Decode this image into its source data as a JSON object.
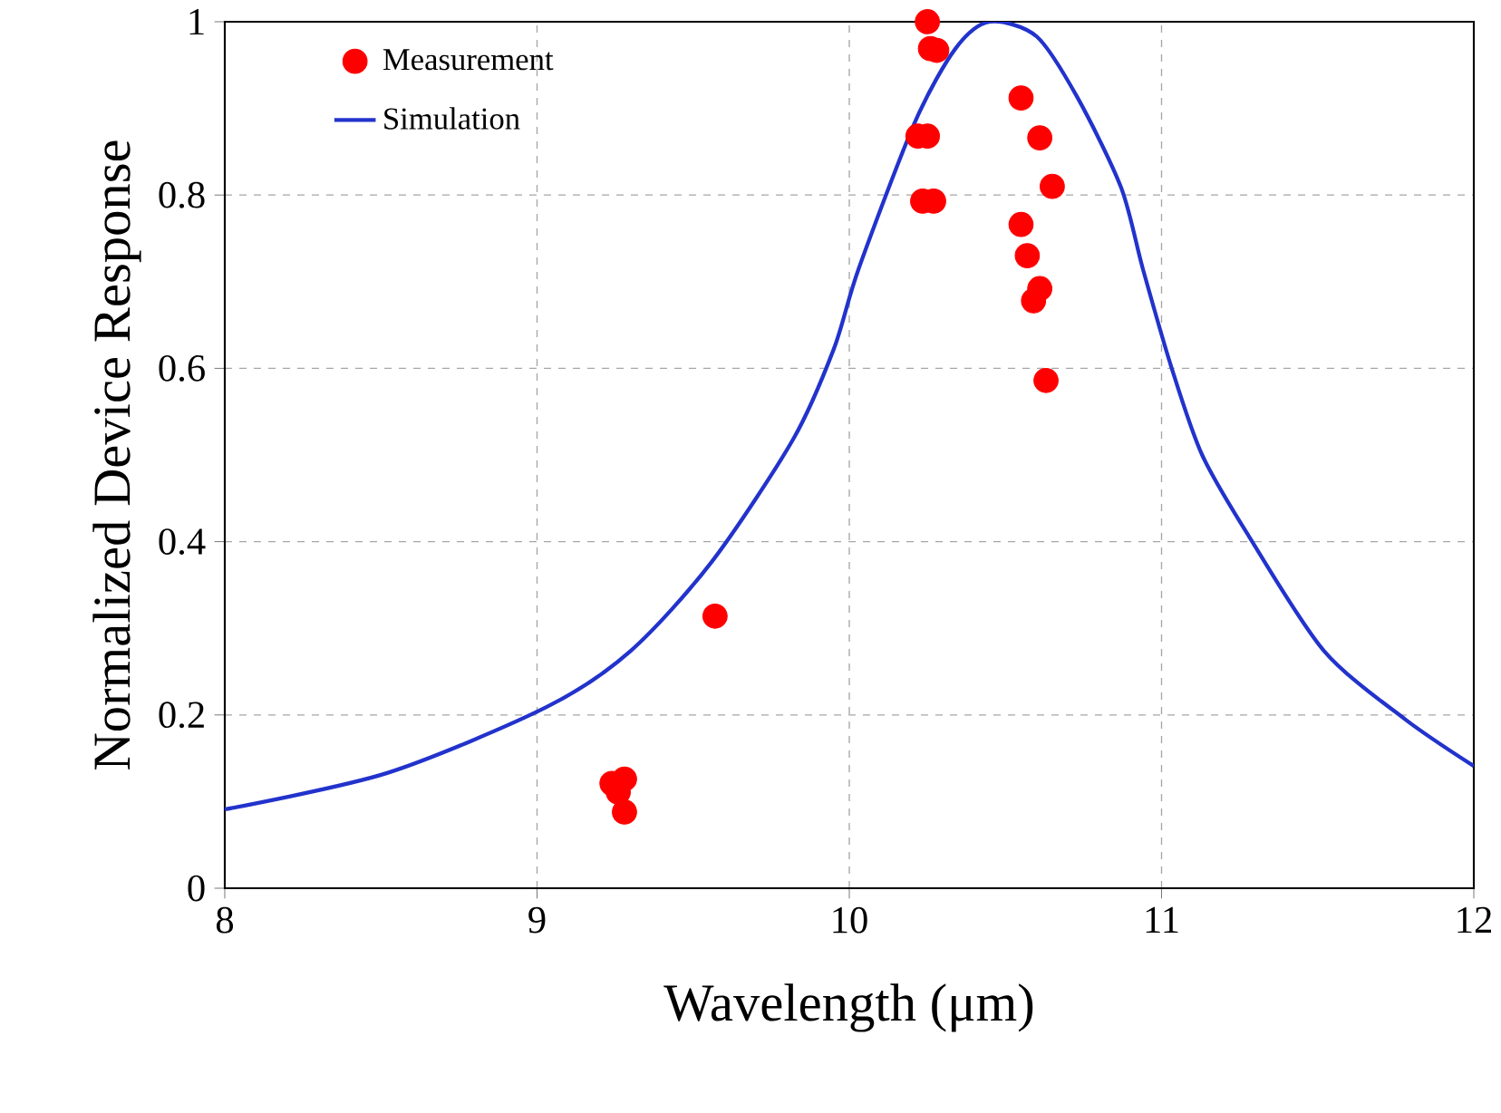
{
  "chart_data": {
    "type": "scatter",
    "xlabel": "Wavelength (μm)",
    "ylabel": "Normalized Device Response",
    "xlim": [
      8,
      12
    ],
    "ylim": [
      0,
      1
    ],
    "xticks": [
      8,
      9,
      10,
      11,
      12
    ],
    "yticks": [
      0,
      0.2,
      0.4,
      0.6,
      0.8,
      1
    ],
    "grid": true,
    "legend": "top left",
    "series": [
      {
        "name": "Measurement",
        "marker": "circle",
        "color": "#ff0000",
        "x": [
          10.25,
          10.26,
          10.28,
          10.22,
          10.25,
          10.235,
          10.27,
          10.55,
          10.61,
          10.65,
          10.55,
          10.57,
          10.61,
          10.59,
          10.63,
          9.57,
          9.24,
          9.28,
          9.26,
          9.28
        ],
        "values": [
          1.0,
          0.969,
          0.967,
          0.868,
          0.868,
          0.793,
          0.793,
          0.912,
          0.866,
          0.81,
          0.766,
          0.73,
          0.692,
          0.678,
          0.586,
          0.314,
          0.121,
          0.126,
          0.111,
          0.088
        ]
      },
      {
        "name": "Simulation",
        "type": "line",
        "marker": "none",
        "line_style": "solid",
        "color": "#2233cc",
        "x": [
          8.0,
          8.52,
          9.03,
          9.3,
          9.56,
          9.82,
          9.95,
          10.03,
          10.21,
          10.34,
          10.45,
          10.6,
          10.73,
          10.87,
          10.94,
          11.03,
          11.13,
          11.28,
          11.52,
          11.78,
          12.0
        ],
        "values": [
          0.091,
          0.133,
          0.209,
          0.274,
          0.377,
          0.518,
          0.622,
          0.715,
          0.884,
          0.969,
          1.0,
          0.983,
          0.913,
          0.809,
          0.715,
          0.603,
          0.5,
          0.406,
          0.274,
          0.195,
          0.141
        ]
      }
    ]
  }
}
